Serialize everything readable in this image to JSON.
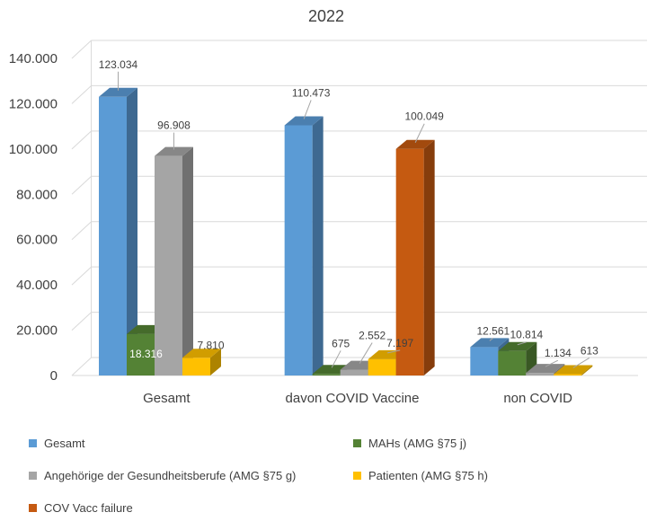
{
  "chart_data": {
    "type": "bar",
    "style": "3d-column",
    "title": "2022",
    "categories": [
      "Gesamt",
      "davon COVID Vaccine",
      "non COVID"
    ],
    "ylim": [
      0,
      140000
    ],
    "yticks": [
      0,
      20000,
      40000,
      60000,
      80000,
      100000,
      120000,
      140000
    ],
    "ytick_labels": [
      "0",
      "20.000",
      "40.000",
      "60.000",
      "80.000",
      "100.000",
      "120.000",
      "140.000"
    ],
    "grid": true,
    "legend_position": "bottom",
    "series": [
      {
        "name": "Gesamt",
        "color": "#5B9BD5",
        "values": [
          123034,
          110473,
          12561
        ],
        "labels": [
          "123.034",
          "110.473",
          "12.561"
        ]
      },
      {
        "name": "MAHs (AMG §75 j)",
        "color": "#548235",
        "values": [
          18316,
          675,
          10814
        ],
        "labels": [
          "18.316",
          "675",
          "10.814"
        ]
      },
      {
        "name": "Angehörige der Gesundheitsberufe (AMG §75 g)",
        "color": "#A5A5A5",
        "values": [
          96908,
          2552,
          1134
        ],
        "labels": [
          "96.908",
          "2.552",
          "1.134"
        ]
      },
      {
        "name": "Patienten (AMG §75 h)",
        "color": "#FFC000",
        "values": [
          7810,
          7197,
          613
        ],
        "labels": [
          "7.810",
          "7.197",
          "613"
        ]
      },
      {
        "name": "COV Vacc failure",
        "color": "#C55A11",
        "values": [
          null,
          100049,
          null
        ],
        "labels": [
          "",
          "100.049",
          ""
        ]
      }
    ]
  }
}
